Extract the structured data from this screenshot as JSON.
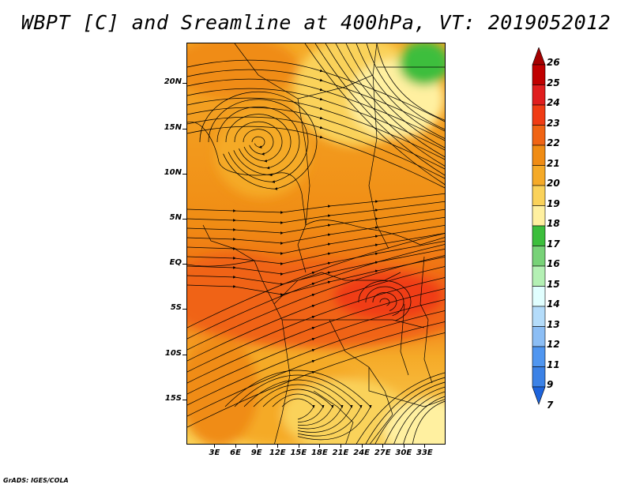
{
  "title": "WBPT [C] and Sreamline at 400hPa, VT: 2019052012",
  "credit": "GrADS: IGES/COLA",
  "map": {
    "lon_range": [
      -1,
      36
    ],
    "lat_range": [
      -20,
      24.5
    ],
    "lat_ticks": [
      {
        "value": 20,
        "label": "20N"
      },
      {
        "value": 15,
        "label": "15N"
      },
      {
        "value": 10,
        "label": "10N"
      },
      {
        "value": 5,
        "label": "5N"
      },
      {
        "value": 0,
        "label": "EQ"
      },
      {
        "value": -5,
        "label": "5S"
      },
      {
        "value": -10,
        "label": "10S"
      },
      {
        "value": -15,
        "label": "15S"
      }
    ],
    "lon_ticks": [
      {
        "value": 3,
        "label": "3E"
      },
      {
        "value": 6,
        "label": "6E"
      },
      {
        "value": 9,
        "label": "9E"
      },
      {
        "value": 12,
        "label": "12E"
      },
      {
        "value": 15,
        "label": "15E"
      },
      {
        "value": 18,
        "label": "18E"
      },
      {
        "value": 21,
        "label": "21E"
      },
      {
        "value": 24,
        "label": "24E"
      },
      {
        "value": 27,
        "label": "27E"
      },
      {
        "value": 30,
        "label": "30E"
      },
      {
        "value": 33,
        "label": "33E"
      }
    ]
  },
  "colorbar": {
    "levels": [
      "26",
      "25",
      "24",
      "23",
      "22",
      "21",
      "20",
      "19",
      "18",
      "17",
      "16",
      "15",
      "14",
      "13",
      "12",
      "11",
      "9",
      "7"
    ],
    "colors": [
      "#a50000",
      "#c00000",
      "#e01e1e",
      "#f03c14",
      "#f06414",
      "#f08c14",
      "#f5aa28",
      "#fad25a",
      "#fff0a0",
      "#3cbe3c",
      "#78d278",
      "#b4f0b4",
      "#e1ffff",
      "#b4dcfa",
      "#8cbef5",
      "#5096f0",
      "#3c82e6",
      "#1e64dc"
    ]
  }
}
